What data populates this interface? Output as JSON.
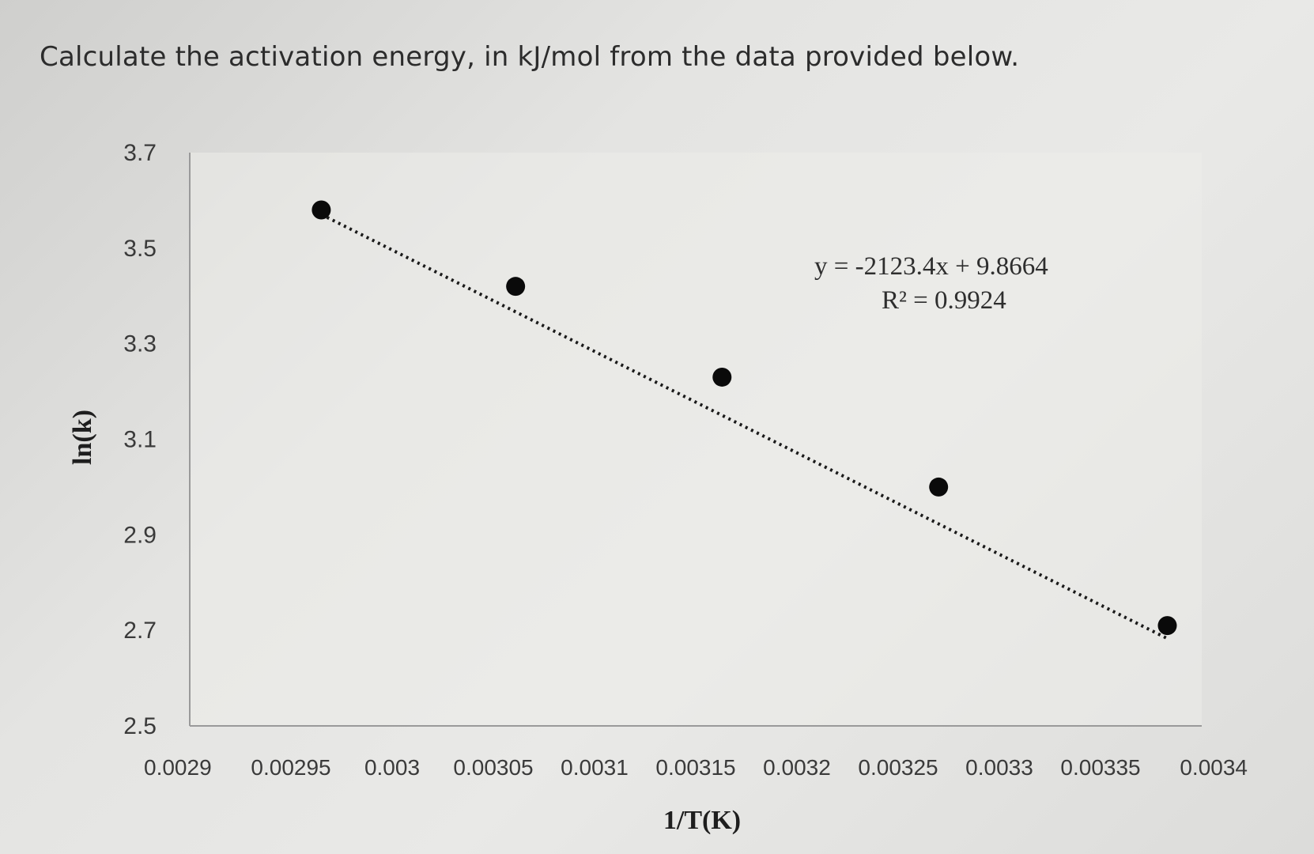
{
  "question": "Calculate the activation energy, in kJ/mol from the data provided below.",
  "chart_data": {
    "type": "scatter",
    "xlabel": "1/T(K)",
    "ylabel": "ln(k)",
    "xlim": [
      0.0029,
      0.0034
    ],
    "ylim": [
      2.5,
      3.7
    ],
    "x_ticks": [
      "0.0029",
      "0.00295",
      "0.003",
      "0.00305",
      "0.0031",
      "0.00315",
      "0.0032",
      "0.00325",
      "0.0033",
      "0.00335",
      "0.0034"
    ],
    "y_ticks": [
      "2.5",
      "2.7",
      "2.9",
      "3.1",
      "3.3",
      "3.5",
      "3.7"
    ],
    "grid": false,
    "points": [
      {
        "x": 0.002965,
        "y": 3.58
      },
      {
        "x": 0.003061,
        "y": 3.42
      },
      {
        "x": 0.003163,
        "y": 3.23
      },
      {
        "x": 0.00327,
        "y": 3.0
      },
      {
        "x": 0.003383,
        "y": 2.71
      }
    ],
    "trendline": {
      "type": "linear",
      "style": "dotted",
      "slope": -2123.4,
      "intercept": 9.8664,
      "x_range": [
        0.002965,
        0.003383
      ],
      "equation_label": "y = -2123.4x + 9.8664",
      "r2_label": "R² = 0.9924"
    },
    "colors": {
      "points": "#0a0a0a",
      "trendline": "#1a1a1a",
      "axis": "#9a9a9a",
      "plot_background": "#ecece9"
    }
  }
}
